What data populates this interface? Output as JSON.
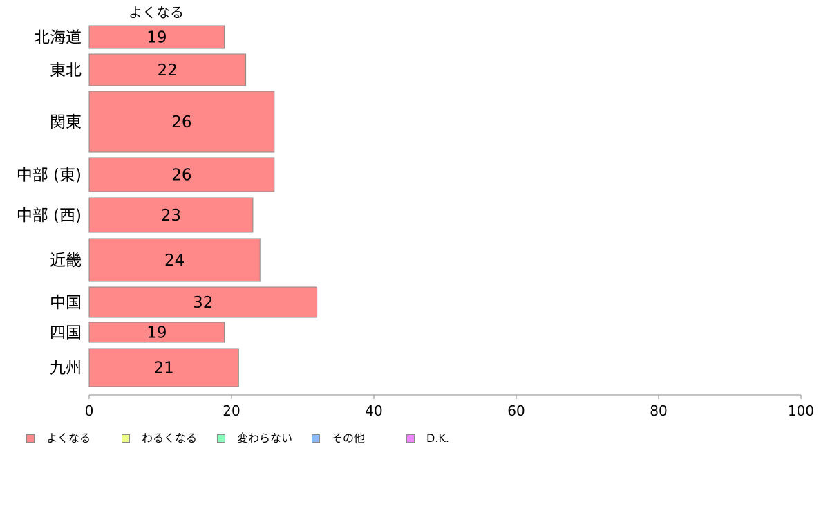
{
  "chart_data": {
    "type": "bar",
    "orientation": "horizontal",
    "column_header": "よくなる",
    "categories": [
      "北海道",
      "東北",
      "関東",
      "中部 (東)",
      "中部 (西)",
      "近畿",
      "中国",
      "四国",
      "九州"
    ],
    "series": [
      {
        "name": "よくなる",
        "color": "#ff8888",
        "values": [
          19,
          22,
          26,
          26,
          23,
          24,
          32,
          19,
          21
        ]
      }
    ],
    "data_labels": [
      "19",
      "22",
      "26",
      "26",
      "23",
      "24",
      "32",
      "19",
      "21"
    ],
    "xlim": [
      0,
      100
    ],
    "xticks": [
      0,
      20,
      40,
      60,
      80,
      100
    ],
    "xtick_labels": [
      "0",
      "20",
      "40",
      "60",
      "80",
      "100"
    ],
    "grid": false,
    "legend_position": "bottom-left"
  },
  "legend": [
    {
      "label": "よくなる",
      "color": "#ff8888"
    },
    {
      "label": "わるくなる",
      "color": "#eeff88"
    },
    {
      "label": "変わらない",
      "color": "#88ffbb"
    },
    {
      "label": "その他",
      "color": "#88bbff"
    },
    {
      "label": "D.K.",
      "color": "#ee88ff"
    }
  ]
}
